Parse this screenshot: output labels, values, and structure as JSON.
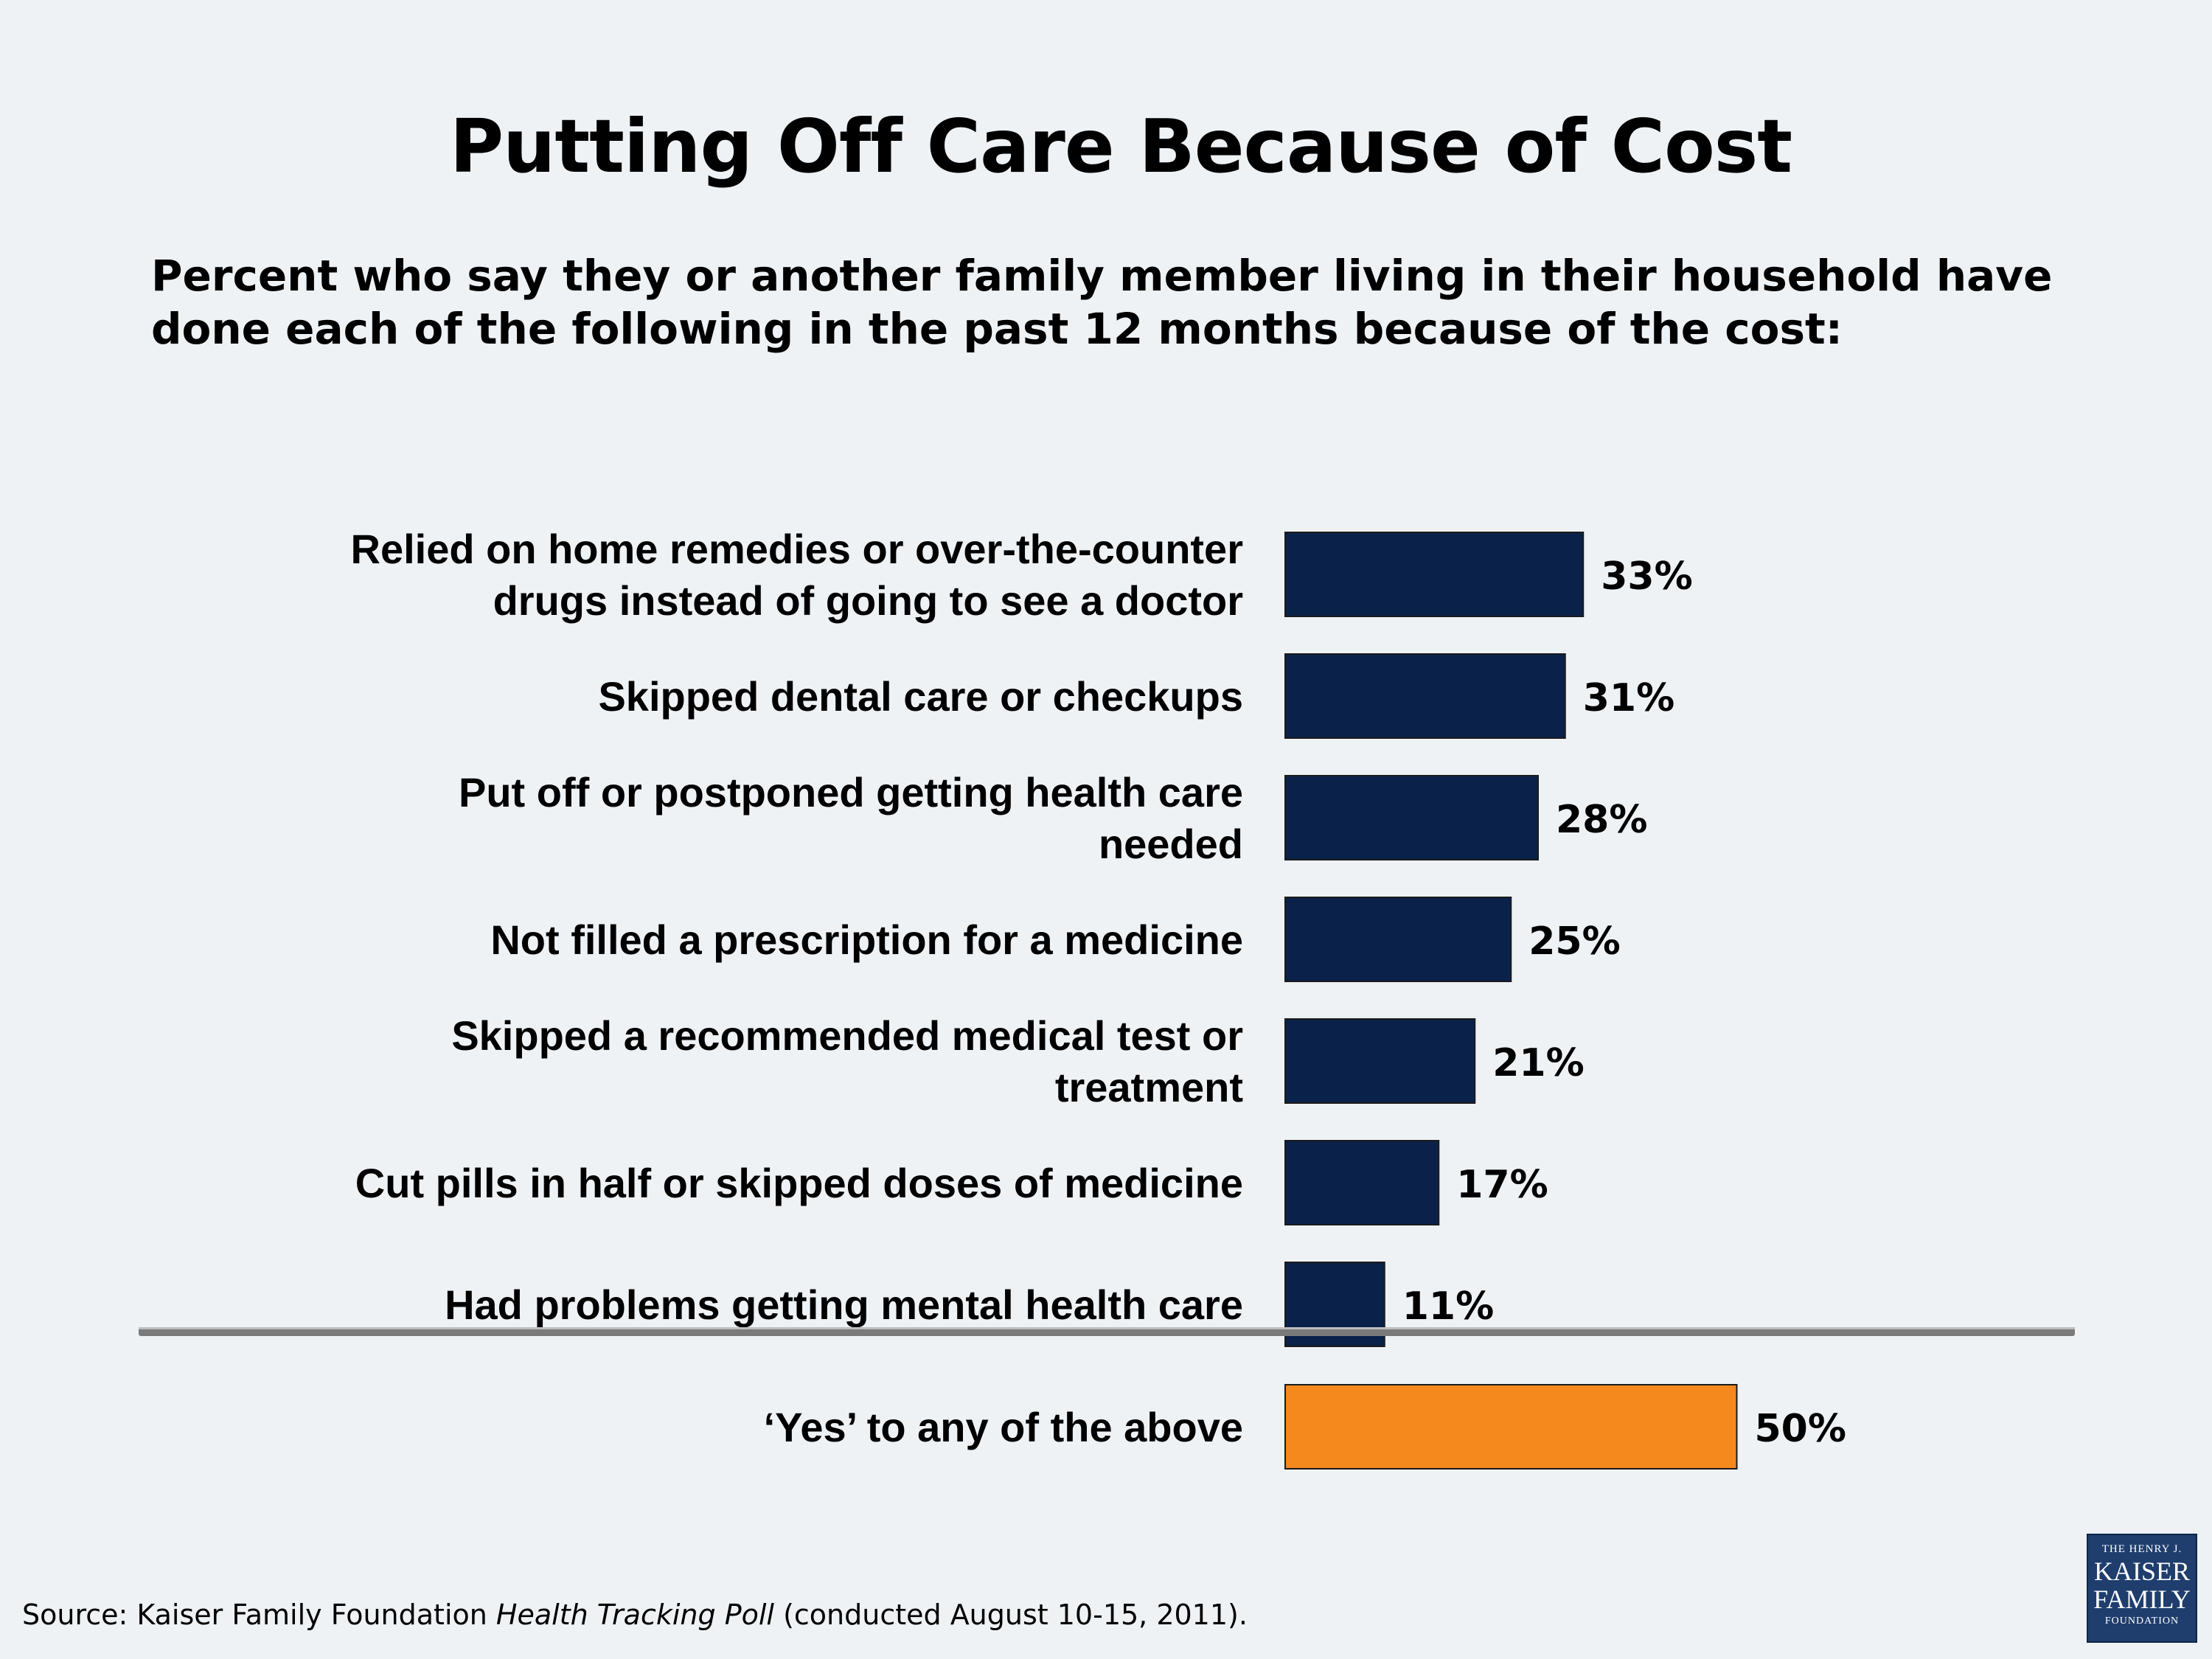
{
  "title": "Putting Off Care Because of Cost",
  "subtitle": "Percent who say they or another family member living in their household have done each of the following in the past 12 months because of the cost:",
  "source": {
    "prefix": "Source: Kaiser Family Foundation ",
    "poll_name": "Health Tracking Poll",
    "suffix": " (conducted August 10-15, 2011)."
  },
  "logo": {
    "line1": "THE HENRY J.",
    "line2": "KAISER",
    "line3": "FAMILY",
    "line4": "FOUNDATION"
  },
  "colors": {
    "bar": "#0a224a",
    "bar_total": "#f5891e",
    "divider": "#7a7a7a"
  },
  "chart_data": {
    "type": "bar",
    "orientation": "horizontal",
    "categories": [
      [
        "Relied on home remedies or over-the-counter",
        "drugs instead of going to see a doctor"
      ],
      [
        "Skipped dental care or checkups"
      ],
      [
        "Put off or postponed getting health care",
        "needed"
      ],
      [
        "Not filled a prescription for a medicine"
      ],
      [
        "Skipped a recommended medical test or",
        "treatment"
      ],
      [
        "Cut pills in half or skipped doses of medicine"
      ],
      [
        "Had problems getting mental health care"
      ],
      [
        "‘Yes’ to any of the above"
      ]
    ],
    "values": [
      33,
      31,
      28,
      25,
      21,
      17,
      11,
      50
    ],
    "value_labels": [
      "33%",
      "31%",
      "28%",
      "25%",
      "21%",
      "17%",
      "11%",
      "50%"
    ],
    "highlight_index": 7,
    "xlim": [
      0,
      100
    ],
    "title": "Putting Off Care Because of Cost",
    "xlabel": "",
    "ylabel": ""
  }
}
